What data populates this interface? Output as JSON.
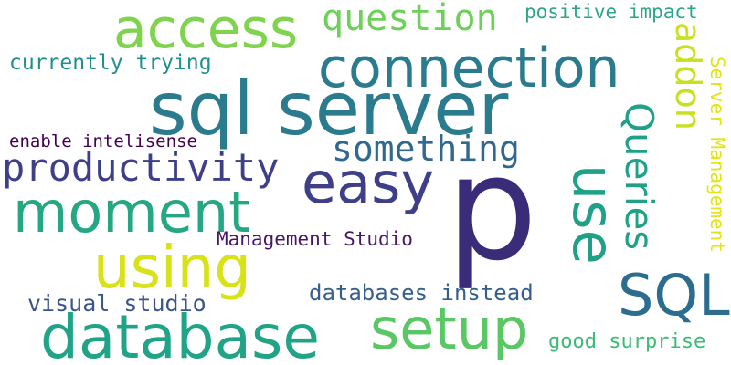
{
  "words": [
    {
      "text": "p",
      "color": "#3b2c7a"
    },
    {
      "text": "sql server",
      "color": "#2a7b8e"
    },
    {
      "text": "connection",
      "color": "#2a7b8e"
    },
    {
      "text": "access",
      "color": "#7fd34e"
    },
    {
      "text": "question",
      "color": "#6ecf5a"
    },
    {
      "text": "positive impact",
      "color": "#2ea58a"
    },
    {
      "text": "currently trying",
      "color": "#218f8c"
    },
    {
      "text": "addon",
      "color": "#c8e020"
    },
    {
      "text": "Server Management",
      "color": "#e2e418"
    },
    {
      "text": "enable intelisense",
      "color": "#440154"
    },
    {
      "text": "something",
      "color": "#31688e"
    },
    {
      "text": "productivity",
      "color": "#3e3f88"
    },
    {
      "text": "easy",
      "color": "#3e3f88"
    },
    {
      "text": "Queries",
      "color": "#1fa187"
    },
    {
      "text": "use",
      "color": "#1fa187"
    },
    {
      "text": "moment",
      "color": "#25a784"
    },
    {
      "text": "Management Studio",
      "color": "#481668"
    },
    {
      "text": "using",
      "color": "#d8e219"
    },
    {
      "text": "SQL",
      "color": "#2c6c8e"
    },
    {
      "text": "databases instead",
      "color": "#355e8d"
    },
    {
      "text": "visual studio",
      "color": "#3a548c"
    },
    {
      "text": "setup",
      "color": "#59c864"
    },
    {
      "text": "database",
      "color": "#20a386"
    },
    {
      "text": "good surprise",
      "color": "#3bbb75"
    }
  ]
}
